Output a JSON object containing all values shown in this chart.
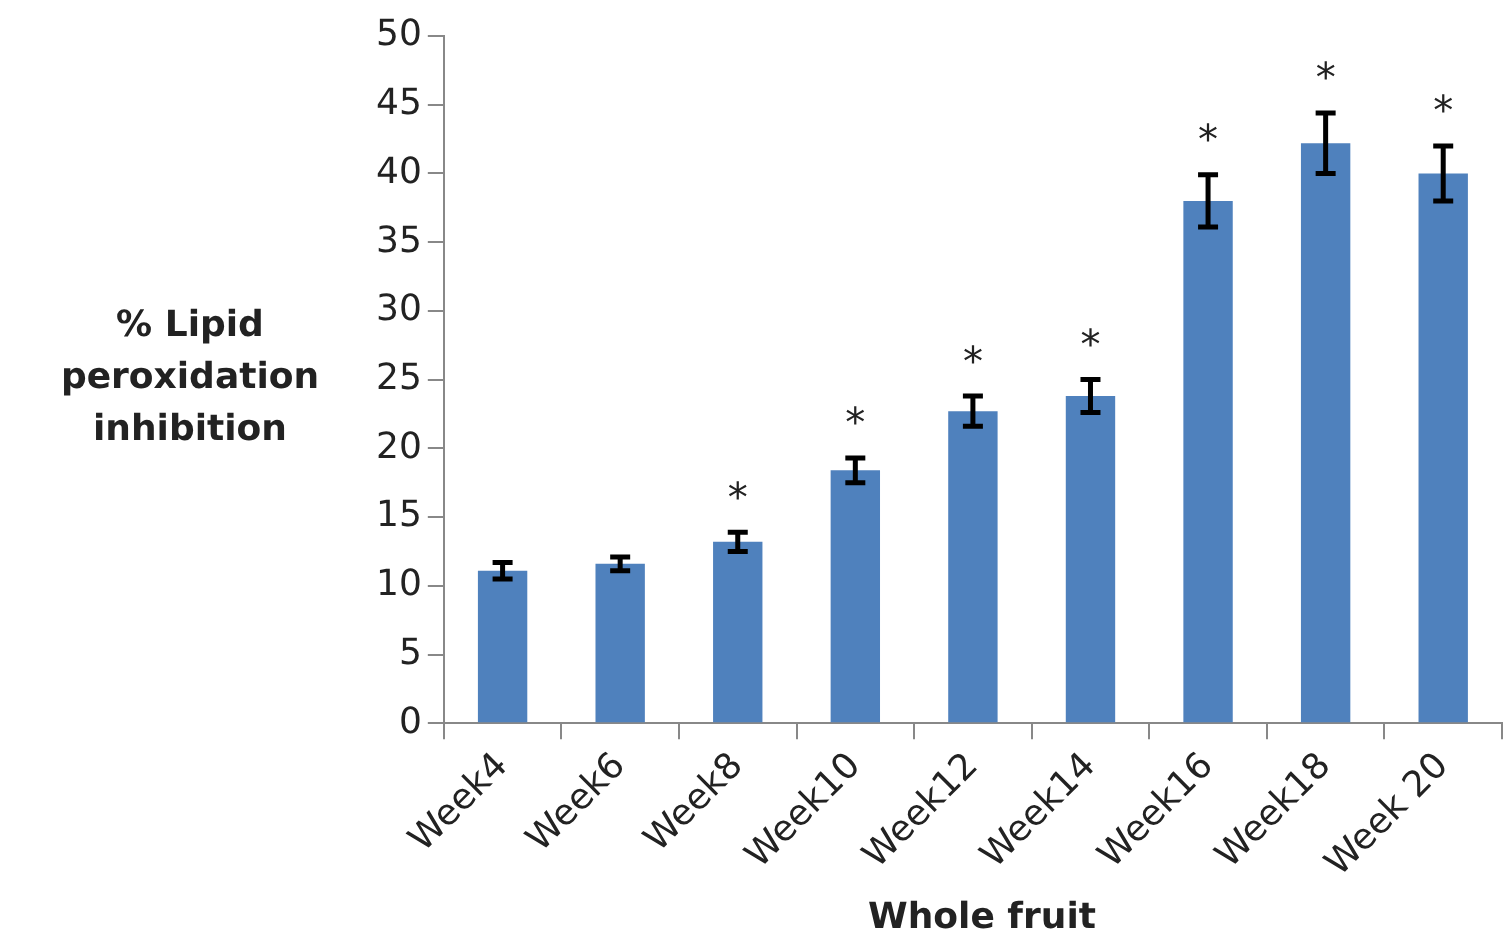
{
  "chart_data": {
    "type": "bar",
    "xlabel": "Whole fruit",
    "ylabel": "% Lipid peroxidation inhibition",
    "categories": [
      "Week4",
      "Week6",
      "Week8",
      "Week10",
      "Week12",
      "Week14",
      "Week16",
      "Week18",
      "Week 20"
    ],
    "values": [
      11.1,
      11.6,
      13.2,
      18.4,
      22.7,
      23.8,
      38.0,
      42.2,
      40.0
    ],
    "errors": [
      0.6,
      0.5,
      0.7,
      0.9,
      1.1,
      1.2,
      1.9,
      2.2,
      2.0
    ],
    "color": "#4f81bd",
    "ylim": [
      0,
      50
    ],
    "yticks": [
      0,
      5,
      10,
      15,
      20,
      25,
      30,
      35,
      40,
      45,
      50
    ],
    "grid": false,
    "annotations": [
      {
        "text": "*",
        "x": "Week8",
        "y": 13.2
      },
      {
        "text": "*",
        "x": "Week10",
        "y": 18.4
      },
      {
        "text": "*",
        "x": "Week12",
        "y": 22.7
      },
      {
        "text": "*",
        "x": "Week14",
        "y": 23.8
      },
      {
        "text": "*",
        "x": "Week16",
        "y": 38.0
      },
      {
        "text": "*",
        "x": "Week18",
        "y": 42.2
      },
      {
        "text": "*",
        "x": "Week 20",
        "y": 40.0
      }
    ]
  }
}
